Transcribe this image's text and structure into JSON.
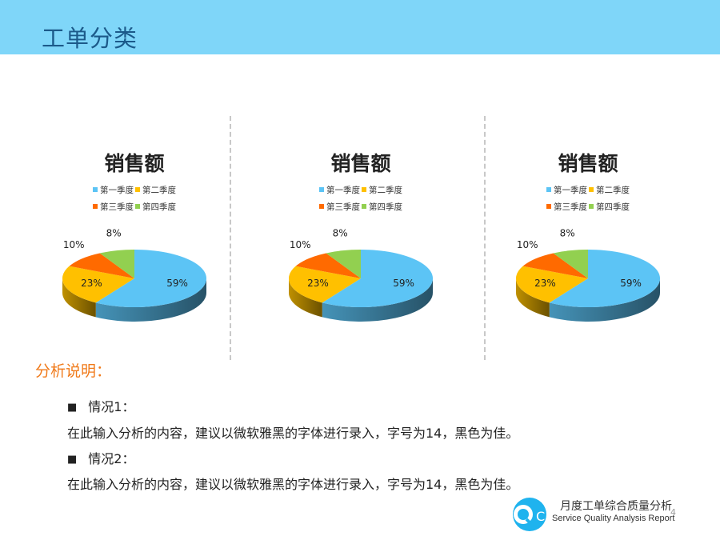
{
  "header": {
    "title": "工单分类"
  },
  "chart_data": [
    {
      "type": "pie",
      "title": "销售额",
      "categories": [
        "第一季度",
        "第二季度",
        "第三季度",
        "第四季度"
      ],
      "values": [
        59,
        23,
        10,
        8
      ],
      "value_labels": [
        "59%",
        "23%",
        "10%",
        "8%"
      ],
      "colors": [
        "#5cc4f5",
        "#ffc000",
        "#ff6a00",
        "#92d050"
      ],
      "legend": "top"
    },
    {
      "type": "pie",
      "title": "销售额",
      "categories": [
        "第一季度",
        "第二季度",
        "第三季度",
        "第四季度"
      ],
      "values": [
        59,
        23,
        10,
        8
      ],
      "value_labels": [
        "59%",
        "23%",
        "10%",
        "8%"
      ],
      "colors": [
        "#5cc4f5",
        "#ffc000",
        "#ff6a00",
        "#92d050"
      ],
      "legend": "top"
    },
    {
      "type": "pie",
      "title": "销售额",
      "categories": [
        "第一季度",
        "第二季度",
        "第三季度",
        "第四季度"
      ],
      "values": [
        59,
        23,
        10,
        8
      ],
      "value_labels": [
        "59%",
        "23%",
        "10%",
        "8%"
      ],
      "colors": [
        "#5cc4f5",
        "#ffc000",
        "#ff6a00",
        "#92d050"
      ],
      "legend": "top"
    }
  ],
  "analysis": {
    "title": "分析说明：",
    "cases": [
      {
        "label": "情况1：",
        "text": "在此输入分析的内容，建议以微软雅黑的字体进行录入，字号为14，黑色为佳。"
      },
      {
        "label": "情况2：",
        "text": "在此输入分析的内容，建议以微软雅黑的字体进行录入，字号为14，黑色为佳。"
      }
    ],
    "bullet": "■"
  },
  "footer": {
    "logo_text": "QC",
    "title_cn": "月度工单综合质量分析",
    "title_en": "Service Quality Analysis Report",
    "page": "4"
  }
}
